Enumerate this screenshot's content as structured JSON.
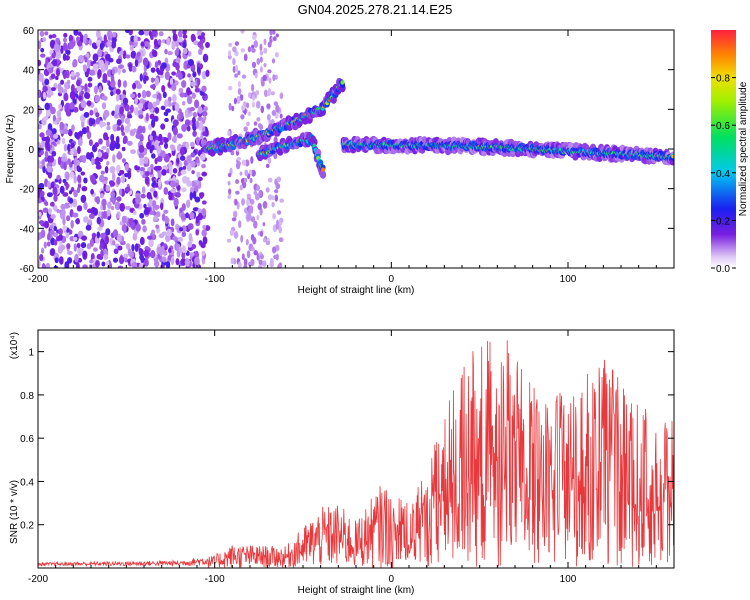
{
  "title": "GN04.2025.278.21.14.E25",
  "colors": {
    "snr_line": "#e8383c",
    "frame": "#000000"
  },
  "chart_data": [
    {
      "type": "heatmap",
      "xlabel": "Height of straight line (km)",
      "ylabel": "Frequency (Hz)",
      "xlim": [
        -200,
        160
      ],
      "ylim": [
        -60,
        60
      ],
      "xticks": [
        "-200",
        "-100",
        "0",
        "100"
      ],
      "yticks": [
        "-60",
        "-40",
        "-20",
        "0",
        "20",
        "40",
        "60"
      ],
      "colorbar": {
        "label": "Normalized spectral amplitude",
        "range": [
          0,
          1
        ],
        "ticks": [
          "0.0",
          "0.2",
          "0.4",
          "0.6",
          "0.8"
        ],
        "colormap": "rainbow (white-violet-blue-cyan-green-yellow-red)"
      },
      "features": [
        {
          "name": "noise band",
          "x_range": [
            -200,
            -104
          ],
          "freq_range": [
            -60,
            60
          ],
          "amplitude": "low"
        },
        {
          "name": "sparse noise",
          "x_range": [
            -92,
            -62
          ],
          "freq_range": [
            -60,
            60
          ],
          "amplitude": "very low"
        },
        {
          "name": "rising trace",
          "points": [
            [
              -105,
              0
            ],
            [
              -92,
              2
            ],
            [
              -80,
              5
            ],
            [
              -70,
              8
            ],
            [
              -60,
              12
            ],
            [
              -50,
              16
            ],
            [
              -40,
              20
            ],
            [
              -32,
              28
            ],
            [
              -27,
              34
            ]
          ]
        },
        {
          "name": "falling branch",
          "points": [
            [
              -75,
              -3
            ],
            [
              -60,
              2
            ],
            [
              -45,
              5
            ],
            [
              -40,
              -8
            ],
            [
              -38,
              -12
            ]
          ]
        },
        {
          "name": "flat trace",
          "points": [
            [
              -27,
              2
            ],
            [
              0,
              2
            ],
            [
              40,
              1.5
            ],
            [
              80,
              0
            ],
            [
              120,
              -2
            ],
            [
              160,
              -4
            ]
          ]
        }
      ]
    },
    {
      "type": "line",
      "xlabel": "Height of straight line (km)",
      "ylabel": "SNR (10 * v/v)",
      "y_scale_label": "(x10⁴)",
      "xlim": [
        -200,
        160
      ],
      "ylim": [
        0,
        1.1
      ],
      "xticks": [
        "-200",
        "-100",
        "0",
        "100"
      ],
      "yticks": [
        "0.2",
        "0.4",
        "0.6",
        "0.8",
        "1"
      ],
      "series_envelope": [
        {
          "x": -200,
          "y": 0.02
        },
        {
          "x": -120,
          "y": 0.03
        },
        {
          "x": -100,
          "y": 0.06
        },
        {
          "x": -90,
          "y": 0.11
        },
        {
          "x": -60,
          "y": 0.1
        },
        {
          "x": -40,
          "y": 0.28
        },
        {
          "x": -30,
          "y": 0.3
        },
        {
          "x": -20,
          "y": 0.22
        },
        {
          "x": -5,
          "y": 0.4
        },
        {
          "x": 10,
          "y": 0.3
        },
        {
          "x": 25,
          "y": 0.6
        },
        {
          "x": 40,
          "y": 0.99
        },
        {
          "x": 63,
          "y": 1.1
        },
        {
          "x": 80,
          "y": 0.85
        },
        {
          "x": 100,
          "y": 0.8
        },
        {
          "x": 120,
          "y": 0.98
        },
        {
          "x": 140,
          "y": 0.75
        },
        {
          "x": 160,
          "y": 0.68
        }
      ]
    }
  ]
}
